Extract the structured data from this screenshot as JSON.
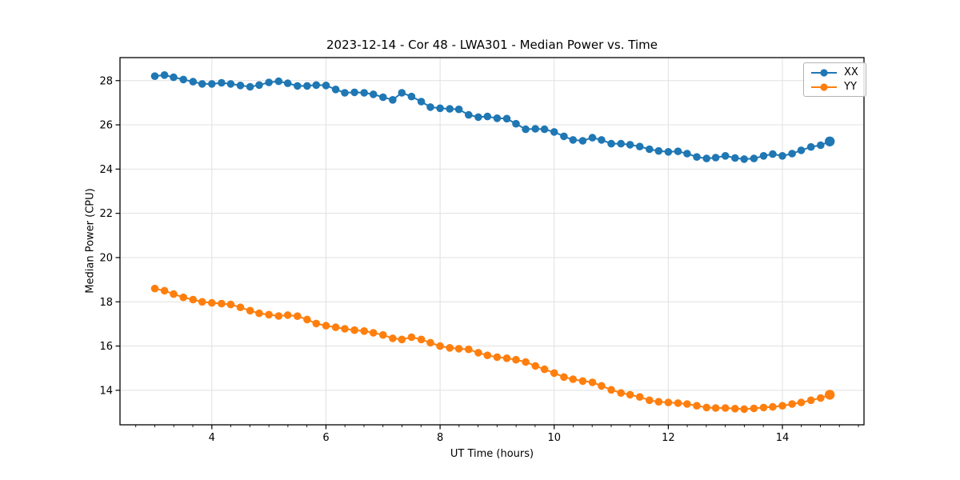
{
  "chart_data": {
    "type": "line",
    "title": "2023-12-14 - Cor 48 - LWA301 - Median Power vs. Time",
    "xlabel": "UT Time (hours)",
    "ylabel": "Median Power (CPU)",
    "grid": true,
    "legend_position": "upper right",
    "marker": "o",
    "xlim": [
      2.39,
      15.43
    ],
    "ylim": [
      12.44,
      29.04
    ],
    "xticks": [
      4,
      6,
      8,
      10,
      12,
      14
    ],
    "yticks": [
      14,
      16,
      18,
      20,
      22,
      24,
      26,
      28
    ],
    "x_minor_step": 0.3333,
    "x": [
      3.0,
      3.17,
      3.33,
      3.5,
      3.67,
      3.83,
      4.0,
      4.17,
      4.33,
      4.5,
      4.67,
      4.83,
      5.0,
      5.17,
      5.33,
      5.5,
      5.67,
      5.83,
      6.0,
      6.17,
      6.33,
      6.5,
      6.67,
      6.83,
      7.0,
      7.17,
      7.33,
      7.5,
      7.67,
      7.83,
      8.0,
      8.17,
      8.33,
      8.5,
      8.67,
      8.83,
      9.0,
      9.17,
      9.33,
      9.5,
      9.67,
      9.83,
      10.0,
      10.17,
      10.33,
      10.5,
      10.67,
      10.83,
      11.0,
      11.17,
      11.33,
      11.5,
      11.67,
      11.83,
      12.0,
      12.17,
      12.33,
      12.5,
      12.67,
      12.83,
      13.0,
      13.17,
      13.33,
      13.5,
      13.67,
      13.83,
      14.0,
      14.17,
      14.33,
      14.5,
      14.67,
      14.83
    ],
    "series": [
      {
        "name": "XX",
        "color": "#1f77b4",
        "values": [
          28.2,
          28.25,
          28.15,
          28.05,
          27.95,
          27.85,
          27.85,
          27.9,
          27.85,
          27.78,
          27.72,
          27.8,
          27.92,
          27.97,
          27.88,
          27.76,
          27.76,
          27.8,
          27.78,
          27.6,
          27.45,
          27.47,
          27.45,
          27.38,
          27.25,
          27.13,
          27.45,
          27.28,
          27.05,
          26.8,
          26.75,
          26.72,
          26.7,
          26.45,
          26.35,
          26.38,
          26.3,
          26.28,
          26.05,
          25.8,
          25.82,
          25.8,
          25.68,
          25.48,
          25.32,
          25.28,
          25.42,
          25.32,
          25.15,
          25.15,
          25.1,
          25.02,
          24.9,
          24.82,
          24.78,
          24.8,
          24.7,
          24.55,
          24.48,
          24.52,
          24.6,
          24.5,
          24.45,
          24.48,
          24.6,
          24.68,
          24.6,
          24.7,
          24.85,
          25.0,
          25.08,
          25.25
        ]
      },
      {
        "name": "YY",
        "color": "#ff7f0e",
        "values": [
          18.6,
          18.5,
          18.35,
          18.2,
          18.1,
          18.0,
          17.95,
          17.92,
          17.88,
          17.75,
          17.6,
          17.48,
          17.42,
          17.36,
          17.4,
          17.35,
          17.2,
          17.02,
          16.92,
          16.85,
          16.78,
          16.72,
          16.68,
          16.6,
          16.5,
          16.35,
          16.3,
          16.4,
          16.3,
          16.15,
          16.0,
          15.92,
          15.88,
          15.85,
          15.7,
          15.58,
          15.5,
          15.45,
          15.38,
          15.28,
          15.1,
          14.95,
          14.78,
          14.6,
          14.5,
          14.42,
          14.36,
          14.2,
          14.02,
          13.88,
          13.8,
          13.7,
          13.55,
          13.48,
          13.45,
          13.42,
          13.38,
          13.3,
          13.22,
          13.2,
          13.2,
          13.17,
          13.15,
          13.18,
          13.22,
          13.25,
          13.3,
          13.38,
          13.45,
          13.55,
          13.65,
          13.8
        ]
      }
    ]
  }
}
